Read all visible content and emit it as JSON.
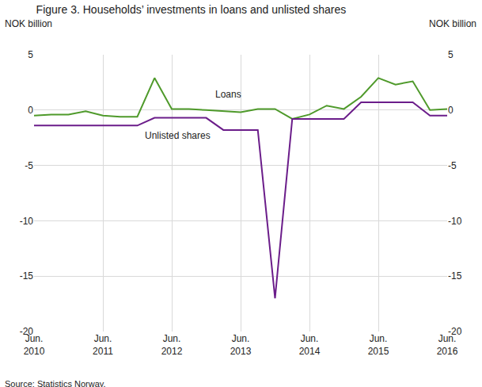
{
  "chart_data": {
    "type": "line",
    "title": "Figure 3. Households’ investments in loans and unlisted shares",
    "ylabel": "NOK billion",
    "y2label": "NOK billion",
    "source": "Source: Statistics Norway.",
    "categories": [
      "Jun.\n2010",
      null,
      null,
      null,
      "Jun.\n2011",
      null,
      null,
      null,
      "Jun.\n2012",
      null,
      null,
      null,
      "Jun.\n2013",
      null,
      null,
      null,
      "Jun.\n2014",
      null,
      null,
      null,
      "Jun.\n2015",
      null,
      null,
      null,
      "Jun.\n2016"
    ],
    "series": [
      {
        "name": "Loans",
        "color": "#4f9a2b",
        "values": [
          -0.5,
          -0.4,
          -0.4,
          -0.1,
          -0.5,
          -0.6,
          -0.6,
          2.9,
          0.1,
          0.1,
          0.0,
          -0.1,
          -0.2,
          0.1,
          0.1,
          -0.8,
          -0.4,
          0.4,
          0.1,
          1.2,
          2.9,
          2.3,
          2.6,
          0.0,
          0.1
        ]
      },
      {
        "name": "Unlisted shares",
        "color": "#6b1d8a",
        "values": [
          -1.4,
          -1.4,
          -1.4,
          -1.4,
          -1.4,
          -1.4,
          -1.4,
          -0.7,
          -0.7,
          -0.7,
          -0.7,
          -1.8,
          -1.8,
          -1.8,
          -17.0,
          -0.8,
          -0.8,
          -0.8,
          -0.8,
          0.7,
          0.7,
          0.7,
          0.7,
          -0.5,
          -0.5
        ]
      }
    ],
    "ylim": [
      -20,
      5
    ],
    "yticks": [
      -20,
      -15,
      -10,
      -5,
      0,
      5
    ],
    "y2lim": [
      -20,
      5
    ],
    "y2ticks": [
      -20,
      -15,
      -10,
      -5,
      0,
      5
    ],
    "grid": true
  }
}
